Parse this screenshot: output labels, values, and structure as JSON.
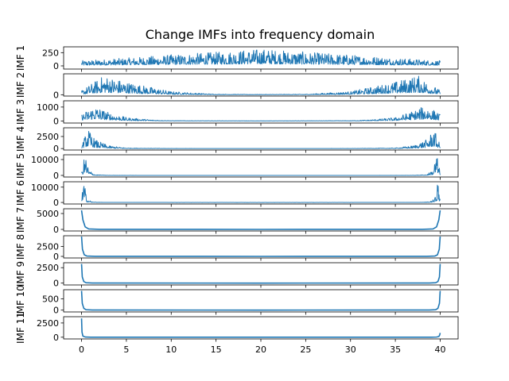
{
  "figure": {
    "title": "Change IMFs into frequency domain"
  },
  "chart_data": {
    "type": "line",
    "title": "Change IMFs into frequency domain",
    "xlim": [
      -2,
      42
    ],
    "xticks": [
      0,
      5,
      10,
      15,
      20,
      25,
      30,
      35,
      40
    ],
    "xtick_labels": [
      "0",
      "5",
      "10",
      "15",
      "20",
      "25",
      "30",
      "35",
      "40"
    ],
    "line_color": "#1f77b4",
    "grid": false,
    "legend": "none",
    "panels": [
      {
        "ylabel": "IMF 1",
        "ylim": [
          -60,
          360
        ],
        "yticks": [
          0,
          250
        ],
        "ytick_labels": [
          "0",
          "250"
        ],
        "style": "noise",
        "x": [
          0,
          5,
          10,
          15,
          20,
          25,
          30,
          35,
          40
        ],
        "values": [
          80,
          120,
          170,
          210,
          260,
          210,
          170,
          120,
          80
        ]
      },
      {
        "ylabel": "IMF 2",
        "ylim": [
          -15,
          240
        ],
        "yticks": [
          0
        ],
        "ytick_labels": [
          "0"
        ],
        "style": "noise",
        "x": [
          0,
          2.5,
          5,
          10,
          15,
          20,
          25,
          30,
          35,
          37.5,
          40
        ],
        "values": [
          40,
          180,
          120,
          30,
          5,
          3,
          5,
          30,
          120,
          180,
          40
        ]
      },
      {
        "ylabel": "IMF 3",
        "ylim": [
          -150,
          1450
        ],
        "yticks": [
          0,
          1000
        ],
        "ytick_labels": [
          "0",
          "1000"
        ],
        "style": "noise",
        "x": [
          0,
          1.5,
          3,
          5,
          8,
          10,
          20,
          30,
          32,
          35,
          38.5,
          40
        ],
        "values": [
          400,
          900,
          500,
          200,
          60,
          20,
          5,
          20,
          60,
          200,
          900,
          400
        ]
      },
      {
        "ylabel": "IMF 4",
        "ylim": [
          -300,
          4300
        ],
        "yticks": [
          0,
          2500
        ],
        "ytick_labels": [
          "0",
          "2500"
        ],
        "style": "noise",
        "x": [
          0,
          0.7,
          1.5,
          3,
          5,
          10,
          20,
          30,
          35,
          37,
          38.5,
          39.3,
          40
        ],
        "values": [
          600,
          3300,
          1500,
          500,
          100,
          20,
          5,
          20,
          100,
          500,
          1500,
          3300,
          600
        ]
      },
      {
        "ylabel": "IMF 5",
        "ylim": [
          -1000,
          13000
        ],
        "yticks": [
          0,
          10000
        ],
        "ytick_labels": [
          "0",
          "10000"
        ],
        "style": "noise",
        "x": [
          0,
          0.4,
          0.8,
          1.5,
          3,
          10,
          20,
          30,
          37,
          38.5,
          39.2,
          39.6,
          40
        ],
        "values": [
          1500,
          11500,
          3000,
          400,
          50,
          10,
          5,
          10,
          50,
          400,
          3000,
          11500,
          1500
        ]
      },
      {
        "ylabel": "IMF 6",
        "ylim": [
          -1000,
          13500
        ],
        "yticks": [
          0,
          10000
        ],
        "ytick_labels": [
          "0",
          "10000"
        ],
        "style": "noise",
        "x": [
          0,
          0.25,
          0.6,
          1.2,
          2.5,
          10,
          20,
          30,
          37.5,
          38.8,
          39.4,
          39.75,
          40
        ],
        "values": [
          3000,
          12000,
          2000,
          300,
          50,
          10,
          5,
          10,
          50,
          300,
          2000,
          12000,
          3000
        ]
      },
      {
        "ylabel": "IMF 7",
        "ylim": [
          -500,
          6500
        ],
        "yticks": [
          0,
          5000
        ],
        "ytick_labels": [
          "0",
          "5000"
        ],
        "style": "smooth",
        "x": [
          0,
          0.15,
          0.4,
          0.8,
          2,
          20,
          38,
          39.2,
          39.6,
          39.85,
          40
        ],
        "values": [
          6000,
          3000,
          800,
          150,
          20,
          3,
          20,
          150,
          800,
          3000,
          6000
        ]
      },
      {
        "ylabel": "IMF 8",
        "ylim": [
          -400,
          5200
        ],
        "yticks": [
          0,
          2500
        ],
        "ytick_labels": [
          "0",
          "2500"
        ],
        "style": "smooth",
        "x": [
          0,
          0.1,
          0.3,
          0.6,
          1.5,
          20,
          38.5,
          39.4,
          39.7,
          39.9,
          40
        ],
        "values": [
          5000,
          1800,
          400,
          80,
          10,
          3,
          10,
          80,
          400,
          1800,
          5000
        ]
      },
      {
        "ylabel": "IMF 9",
        "ylim": [
          -300,
          3300
        ],
        "yticks": [
          0,
          2500
        ],
        "ytick_labels": [
          "0",
          "2500"
        ],
        "style": "smooth",
        "x": [
          0,
          0.08,
          0.25,
          0.5,
          1.2,
          20,
          38.8,
          39.5,
          39.75,
          39.92,
          40
        ],
        "values": [
          3100,
          1000,
          250,
          60,
          10,
          3,
          10,
          60,
          250,
          1000,
          3100
        ]
      },
      {
        "ylabel": "IMF 10",
        "ylim": [
          -80,
          900
        ],
        "yticks": [
          0,
          500
        ],
        "ytick_labels": [
          "0",
          "500"
        ],
        "style": "smooth",
        "x": [
          0,
          0.08,
          0.25,
          0.5,
          1.2,
          20,
          38.8,
          39.5,
          39.75,
          39.92,
          40
        ],
        "values": [
          850,
          300,
          80,
          20,
          5,
          2,
          5,
          20,
          80,
          300,
          850
        ]
      },
      {
        "ylabel": "IMF 11",
        "ylim": [
          -300,
          3600
        ],
        "yticks": [
          0,
          2500
        ],
        "ytick_labels": [
          "0",
          "2500"
        ],
        "style": "smooth",
        "x": [
          0,
          0.05,
          0.15,
          0.4,
          1,
          20,
          39,
          39.6,
          39.85,
          39.95,
          40
        ],
        "values": [
          3300,
          900,
          200,
          40,
          5,
          2,
          5,
          30,
          120,
          400,
          750
        ]
      }
    ]
  }
}
